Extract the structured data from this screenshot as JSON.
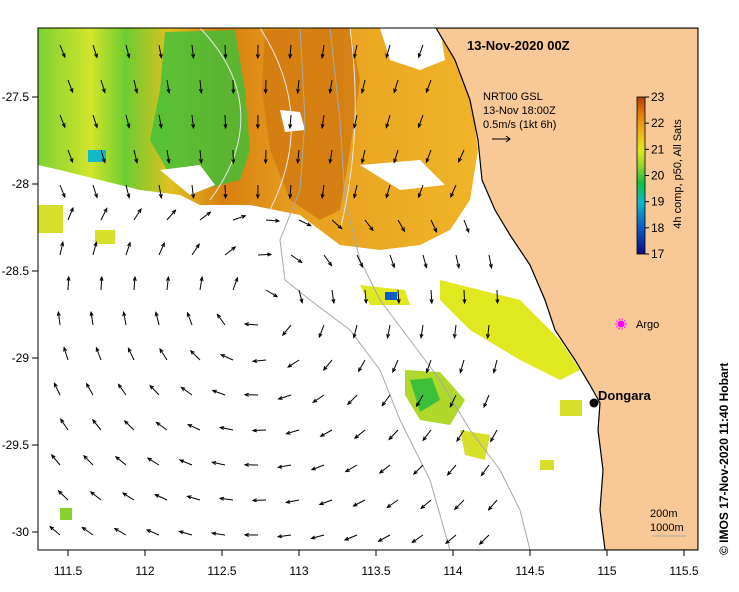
{
  "title": "13-Nov-2020 00Z",
  "wind_legend": {
    "line1": "NRT00 GSL",
    "line2": "13-Nov 18:00Z",
    "line3": "0.5m/s (1kt 6h)"
  },
  "colorbar": {
    "label": "4h comp, p50, All Sats",
    "ticks": [
      "23",
      "22",
      "21",
      "20",
      "19",
      "18",
      "17"
    ],
    "min": 17,
    "max": 23
  },
  "places": {
    "argo": "Argo",
    "dongara": "Dongara"
  },
  "contours": {
    "line1": "200m",
    "line2": "1000m"
  },
  "credit": "© IMOS 17-Nov-2020 11:40 Hobart",
  "axes": {
    "x_ticks": [
      "111.5",
      "112",
      "112.5",
      "113",
      "113.5",
      "114",
      "114.5",
      "115",
      "115.5"
    ],
    "y_ticks": [
      "-27.5",
      "-28",
      "-28.5",
      "-29",
      "-29.5",
      "-30"
    ]
  },
  "colors": {
    "land": "#f8c896",
    "coast": "#000000",
    "argo_marker": "#ff00ff"
  }
}
